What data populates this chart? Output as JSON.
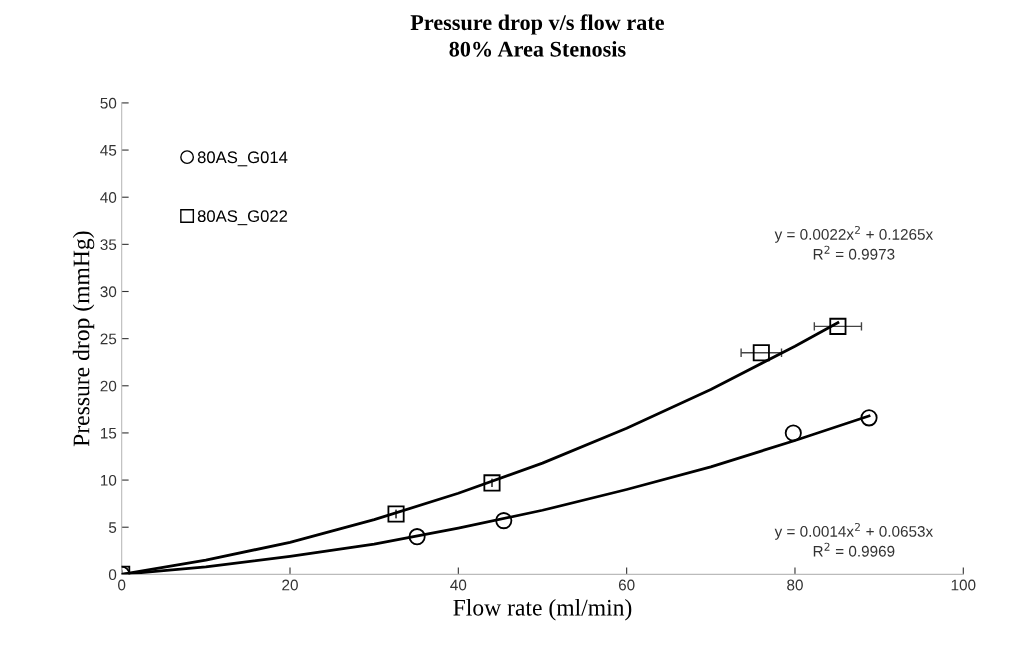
{
  "chart_data": {
    "type": "scatter",
    "title": "Pressure drop v/s flow rate",
    "subtitle": "80% Area Stenosis",
    "xlabel": "Flow rate (ml/min)",
    "ylabel": "Pressure drop (mmHg)",
    "xlim": [
      0,
      100
    ],
    "xticks": [
      0,
      20,
      40,
      60,
      80,
      100
    ],
    "ylim": [
      0,
      50
    ],
    "yticks": [
      0,
      5,
      10,
      15,
      20,
      25,
      30,
      35,
      40,
      45,
      50
    ],
    "grid": false,
    "legend": "top left",
    "series": [
      {
        "name": "80AS_G014",
        "marker": "circle",
        "color": "#000000",
        "x": [
          0,
          35.1,
          45.4,
          79.8,
          88.8
        ],
        "values": [
          0,
          4.0,
          5.7,
          15.0,
          16.6
        ]
      },
      {
        "name": "80AS_G022",
        "marker": "square",
        "color": "#000000",
        "x": [
          0,
          32.6,
          44.0,
          76.0,
          85.1
        ],
        "values": [
          0,
          6.4,
          9.7,
          23.5,
          26.3
        ],
        "xerrors": [
          null,
          null,
          null,
          2.4,
          2.8
        ]
      },
      {
        "type": "line",
        "marker": "none",
        "color": "#000000",
        "x": [
          0,
          10,
          20,
          30,
          40,
          50,
          60,
          70,
          80,
          85.1
        ],
        "values": [
          0,
          1.5,
          3.4,
          5.8,
          8.6,
          11.8,
          15.5,
          19.6,
          24.2,
          26.7
        ]
      },
      {
        "type": "line",
        "marker": "none",
        "color": "#000000",
        "x": [
          0,
          10,
          20,
          30,
          40,
          50,
          60,
          70,
          80,
          88.8
        ],
        "values": [
          0,
          0.8,
          1.9,
          3.2,
          4.9,
          6.8,
          9.0,
          11.4,
          14.2,
          16.8
        ]
      }
    ],
    "annotations": [
      "y = 0.0022x$^{2}$ + 0.1265x\nR$^{2}$ = 0.9973",
      "y = 0.0014x$^{2}$ + 0.0653x\nR$^{2}$ = 0.9969"
    ]
  }
}
